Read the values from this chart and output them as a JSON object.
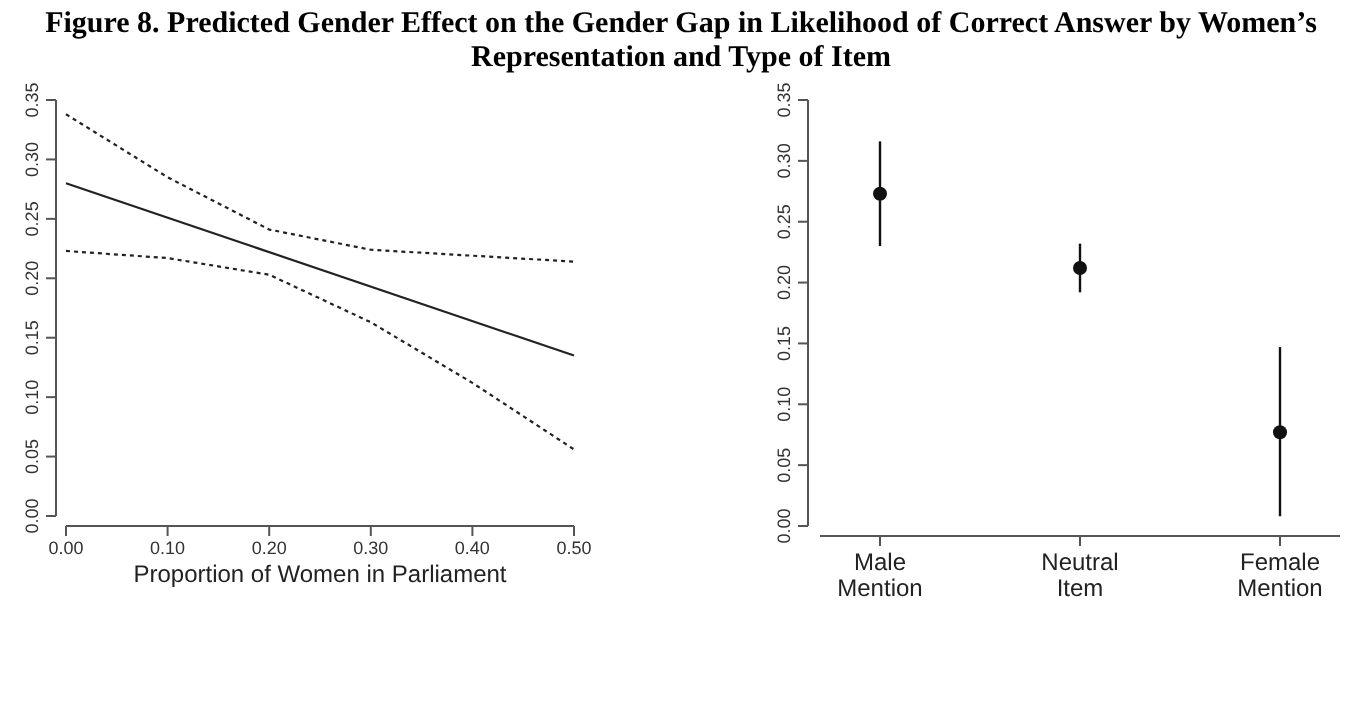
{
  "chart_data": [
    {
      "type": "line",
      "title": "Figure 8. Predicted Gender Effect on the Gender Gap in Likelihood of Correct Answer by Women’s Representation and Type of Item",
      "xlabel": "Proportion of Women in Parliament",
      "xlim": [
        0,
        0.5
      ],
      "xticks": [
        {
          "value": 0,
          "label": "0.00"
        },
        {
          "value": 0.1,
          "label": "0.10"
        },
        {
          "value": 0.2,
          "label": "0.20"
        },
        {
          "value": 0.3,
          "label": "0.30"
        },
        {
          "value": 0.4,
          "label": "0.40"
        },
        {
          "value": 0.5,
          "label": "0.50"
        }
      ],
      "ylim": [
        0,
        0.35
      ],
      "yticks": [
        {
          "value": 0,
          "label": "0.00"
        },
        {
          "value": 0.05,
          "label": "0.05"
        },
        {
          "value": 0.1,
          "label": "0.10"
        },
        {
          "value": 0.15,
          "label": "0.15"
        },
        {
          "value": 0.2,
          "label": "0.20"
        },
        {
          "value": 0.25,
          "label": "0.25"
        },
        {
          "value": 0.3,
          "label": "0.30"
        },
        {
          "value": 0.35,
          "label": "0.35"
        }
      ],
      "series": [
        {
          "color": "#222222",
          "line_style": "solid",
          "x": [
            0,
            0.5
          ],
          "values": [
            0.28,
            0.135
          ]
        },
        {
          "color": "#222222",
          "line_style": "dotted",
          "x": [
            0,
            0.1,
            0.2,
            0.3,
            0.4,
            0.5
          ],
          "values": [
            0.338,
            0.285,
            0.241,
            0.224,
            0.219,
            0.214
          ]
        },
        {
          "color": "#222222",
          "line_style": "dotted",
          "x": [
            0,
            0.1,
            0.2,
            0.3,
            0.4,
            0.5
          ],
          "values": [
            0.223,
            0.217,
            0.203,
            0.163,
            0.112,
            0.056
          ]
        }
      ]
    },
    {
      "type": "scatter",
      "categories": [
        "Male\nMention",
        "Neutral\nItem",
        "Female\nMention"
      ],
      "values": [
        0.273,
        0.212,
        0.077
      ],
      "errors": [
        [
          0.23,
          0.316
        ],
        [
          0.192,
          0.232
        ],
        [
          0.008,
          0.147
        ]
      ],
      "color": "#111111",
      "marker": "circle",
      "ylim": [
        0,
        0.35
      ],
      "yticks": [
        {
          "value": 0,
          "label": "0.00"
        },
        {
          "value": 0.05,
          "label": "0.05"
        },
        {
          "value": 0.1,
          "label": "0.10"
        },
        {
          "value": 0.15,
          "label": "0.15"
        },
        {
          "value": 0.2,
          "label": "0.20"
        },
        {
          "value": 0.25,
          "label": "0.25"
        },
        {
          "value": 0.3,
          "label": "0.30"
        },
        {
          "value": 0.35,
          "label": "0.35"
        }
      ]
    }
  ]
}
